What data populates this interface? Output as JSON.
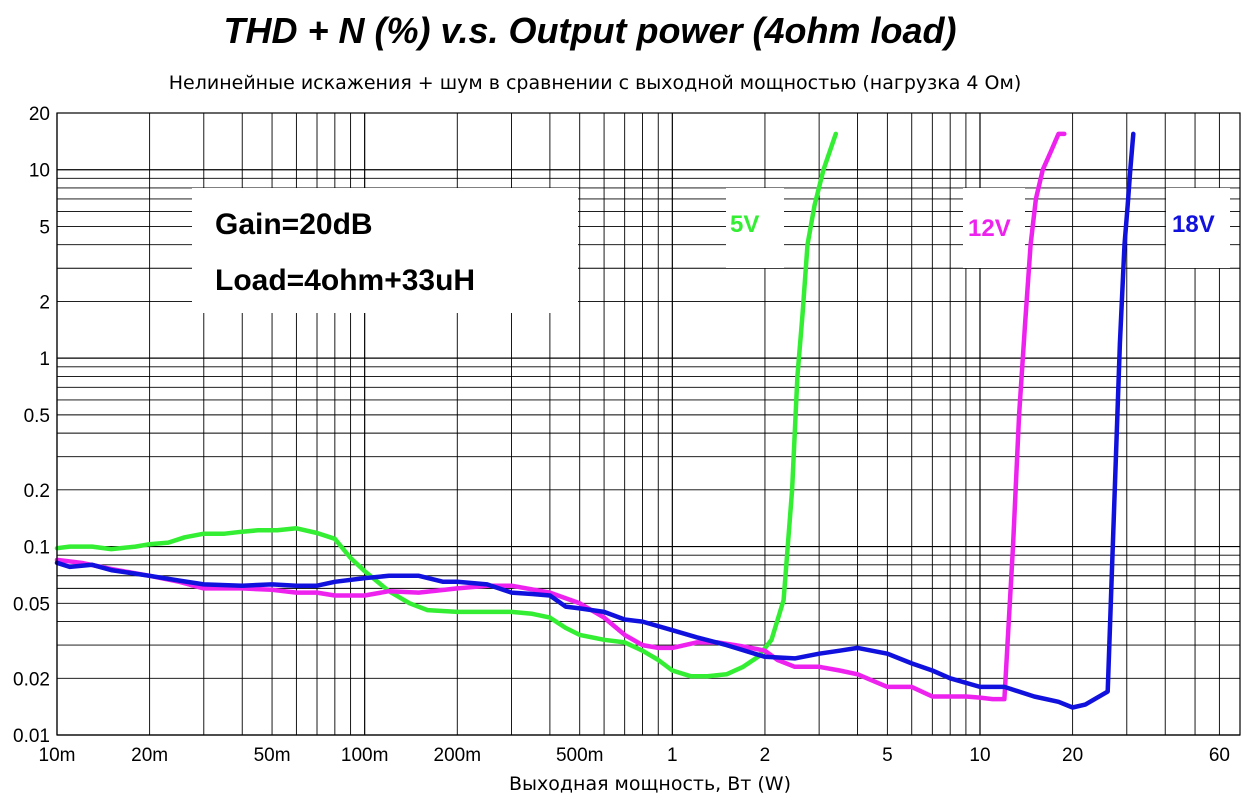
{
  "chart_data": {
    "type": "line",
    "title": "THD + N (%) v.s. Output power (4ohm load)",
    "subtitle": "Нелинейные искажения + шум в сравнении с выходной мощностью (нагрузка 4 Ом)",
    "xlabel": "Выходная мощность, Вт    (W)",
    "ylabel": "",
    "x_scale": "log",
    "y_scale": "log",
    "xlim": [
      0.01,
      70
    ],
    "ylim": [
      0.01,
      20
    ],
    "grid": true,
    "x_ticks": [
      {
        "value": 0.01,
        "label": "10m"
      },
      {
        "value": 0.02,
        "label": "20m"
      },
      {
        "value": 0.05,
        "label": "50m"
      },
      {
        "value": 0.1,
        "label": "100m"
      },
      {
        "value": 0.2,
        "label": "200m"
      },
      {
        "value": 0.5,
        "label": "500m"
      },
      {
        "value": 1,
        "label": "1"
      },
      {
        "value": 2,
        "label": "2"
      },
      {
        "value": 5,
        "label": "5"
      },
      {
        "value": 10,
        "label": "10"
      },
      {
        "value": 20,
        "label": "20"
      },
      {
        "value": 60,
        "label": "60"
      }
    ],
    "y_ticks": [
      {
        "value": 0.01,
        "label": "0.01"
      },
      {
        "value": 0.02,
        "label": "0.02"
      },
      {
        "value": 0.05,
        "label": "0.05"
      },
      {
        "value": 0.1,
        "label": "0.1"
      },
      {
        "value": 0.2,
        "label": "0.2"
      },
      {
        "value": 0.5,
        "label": "0.5"
      },
      {
        "value": 1,
        "label": "1"
      },
      {
        "value": 2,
        "label": "2"
      },
      {
        "value": 5,
        "label": "5"
      },
      {
        "value": 10,
        "label": "10"
      },
      {
        "value": 20,
        "label": "20"
      }
    ],
    "annotations": [
      "Gain=20dB",
      "Load=4ohm+33uH"
    ],
    "series": [
      {
        "name": "5V",
        "color": "#33ee33",
        "x": [
          0.01,
          0.011,
          0.013,
          0.015,
          0.018,
          0.02,
          0.023,
          0.026,
          0.03,
          0.035,
          0.04,
          0.045,
          0.052,
          0.06,
          0.07,
          0.08,
          0.09,
          0.1,
          0.12,
          0.14,
          0.16,
          0.2,
          0.25,
          0.3,
          0.35,
          0.4,
          0.45,
          0.5,
          0.6,
          0.7,
          0.8,
          0.9,
          1.0,
          1.15,
          1.3,
          1.5,
          1.7,
          1.9,
          2.1,
          2.3,
          2.45,
          2.55,
          2.65,
          2.75,
          2.9,
          3.1,
          3.4
        ],
        "y": [
          0.098,
          0.1,
          0.1,
          0.097,
          0.1,
          0.103,
          0.105,
          0.112,
          0.117,
          0.117,
          0.12,
          0.122,
          0.122,
          0.125,
          0.118,
          0.11,
          0.087,
          0.074,
          0.058,
          0.05,
          0.046,
          0.045,
          0.045,
          0.045,
          0.044,
          0.042,
          0.037,
          0.034,
          0.032,
          0.031,
          0.028,
          0.025,
          0.022,
          0.0205,
          0.0205,
          0.021,
          0.023,
          0.026,
          0.032,
          0.052,
          0.2,
          0.8,
          1.7,
          4.0,
          6.5,
          10.0,
          15.5
        ]
      },
      {
        "name": "12V",
        "color": "#ee22ee",
        "x": [
          0.01,
          0.012,
          0.015,
          0.02,
          0.025,
          0.03,
          0.04,
          0.05,
          0.06,
          0.07,
          0.08,
          0.1,
          0.12,
          0.15,
          0.2,
          0.25,
          0.3,
          0.4,
          0.5,
          0.6,
          0.7,
          0.8,
          0.9,
          1.0,
          1.2,
          1.4,
          1.6,
          1.8,
          2.0,
          2.2,
          2.5,
          3.0,
          3.5,
          4.0,
          5.0,
          6.0,
          7.0,
          8.0,
          9.0,
          10.0,
          11.0,
          12.0,
          12.8,
          13.4,
          14.0,
          14.6,
          15.2,
          16.0,
          17.0,
          18.0,
          18.8
        ],
        "y": [
          0.085,
          0.082,
          0.076,
          0.07,
          0.065,
          0.06,
          0.06,
          0.059,
          0.057,
          0.057,
          0.055,
          0.055,
          0.058,
          0.057,
          0.06,
          0.062,
          0.062,
          0.057,
          0.05,
          0.042,
          0.034,
          0.03,
          0.029,
          0.029,
          0.031,
          0.031,
          0.03,
          0.029,
          0.028,
          0.025,
          0.023,
          0.023,
          0.022,
          0.021,
          0.018,
          0.018,
          0.016,
          0.016,
          0.016,
          0.0158,
          0.0155,
          0.0155,
          0.1,
          0.5,
          1.5,
          4.0,
          7.0,
          10.0,
          12.5,
          15.5,
          15.5
        ]
      },
      {
        "name": "18V",
        "color": "#1111dd",
        "x": [
          0.01,
          0.011,
          0.013,
          0.015,
          0.02,
          0.025,
          0.03,
          0.04,
          0.05,
          0.06,
          0.07,
          0.08,
          0.1,
          0.12,
          0.15,
          0.18,
          0.2,
          0.25,
          0.3,
          0.35,
          0.4,
          0.45,
          0.5,
          0.6,
          0.7,
          0.8,
          1.0,
          1.2,
          1.5,
          2.0,
          2.5,
          3.0,
          3.5,
          4.0,
          5.0,
          6.0,
          7.0,
          8.0,
          10.0,
          12.0,
          15.0,
          18.0,
          20.0,
          22.0,
          26.0,
          28.5,
          29.5,
          30.2,
          30.8,
          31.5
        ],
        "y": [
          0.082,
          0.078,
          0.08,
          0.075,
          0.07,
          0.066,
          0.063,
          0.062,
          0.063,
          0.062,
          0.062,
          0.065,
          0.068,
          0.07,
          0.07,
          0.065,
          0.065,
          0.063,
          0.057,
          0.056,
          0.055,
          0.048,
          0.047,
          0.045,
          0.041,
          0.04,
          0.036,
          0.033,
          0.03,
          0.026,
          0.0255,
          0.027,
          0.028,
          0.029,
          0.027,
          0.024,
          0.022,
          0.02,
          0.018,
          0.018,
          0.016,
          0.015,
          0.014,
          0.0145,
          0.017,
          1.2,
          4.0,
          6.5,
          10.0,
          15.5
        ]
      }
    ]
  }
}
